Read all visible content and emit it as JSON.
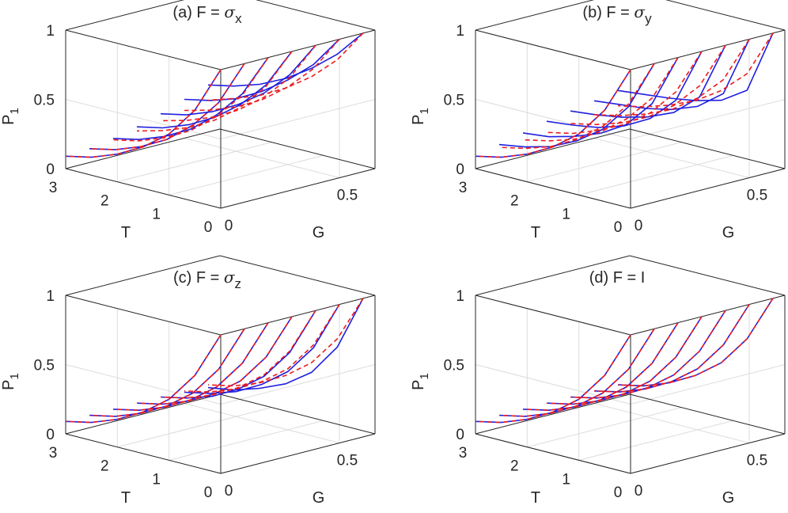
{
  "colors": {
    "simulation_line": "#1f1fe0",
    "theory_line": "#ee1c1c",
    "axes": "#262626",
    "grid": "#dcdcdc"
  },
  "chart_data": [
    {
      "type": "line3d",
      "title": {
        "prefix": "(a) F = ",
        "symbol": "σ",
        "subscript": "x"
      },
      "xlabel": "T",
      "ylabel": "G",
      "zlabel": {
        "base": "P",
        "subscript": "1"
      },
      "xlim": [
        0,
        3
      ],
      "ylim": [
        0,
        0.65
      ],
      "zlim": [
        0,
        1
      ],
      "xticks": [
        "0",
        "1",
        "2",
        "3"
      ],
      "yticks": [
        "0",
        "0.5"
      ],
      "zticks": [
        "0",
        "0.5",
        "1"
      ],
      "G_values": [
        0,
        0.1,
        0.2,
        0.3,
        0.4,
        0.5,
        0.6
      ],
      "series": [
        {
          "style": "solid",
          "color": "blue",
          "T": [
            0,
            0.5,
            1,
            1.5,
            2,
            2.5,
            3
          ],
          "P1": [
            [
              1,
              0.66,
              0.44,
              0.3,
              0.2,
              0.13,
              0.09
            ],
            [
              1,
              0.67,
              0.46,
              0.31,
              0.21,
              0.14,
              0.1
            ],
            [
              1,
              0.69,
              0.49,
              0.34,
              0.24,
              0.17,
              0.13
            ],
            [
              1,
              0.71,
              0.52,
              0.38,
              0.28,
              0.21,
              0.17
            ],
            [
              1,
              0.74,
              0.56,
              0.43,
              0.33,
              0.26,
              0.22
            ],
            [
              1,
              0.77,
              0.61,
              0.48,
              0.38,
              0.32,
              0.28
            ],
            [
              1,
              0.8,
              0.65,
              0.53,
              0.44,
              0.38,
              0.34
            ]
          ]
        },
        {
          "style": "dashed",
          "color": "red",
          "T": [
            0,
            0.5,
            1,
            1.5,
            2,
            2.5,
            3
          ],
          "P1": [
            [
              1,
              0.66,
              0.44,
              0.3,
              0.2,
              0.13,
              0.09
            ],
            [
              1,
              0.67,
              0.46,
              0.31,
              0.21,
              0.14,
              0.1
            ],
            [
              1,
              0.68,
              0.48,
              0.33,
              0.23,
              0.16,
              0.12
            ],
            [
              1,
              0.7,
              0.5,
              0.36,
              0.26,
              0.19,
              0.14
            ],
            [
              1,
              0.72,
              0.53,
              0.39,
              0.29,
              0.22,
              0.17
            ],
            [
              1,
              0.74,
              0.56,
              0.42,
              0.32,
              0.25,
              0.2
            ],
            [
              1,
              0.76,
              0.59,
              0.46,
              0.36,
              0.29,
              0.23
            ]
          ]
        }
      ]
    },
    {
      "type": "line3d",
      "title": {
        "prefix": "(b) F = ",
        "symbol": "σ",
        "subscript": "y"
      },
      "xlabel": "T",
      "ylabel": "G",
      "zlabel": {
        "base": "P",
        "subscript": "1"
      },
      "xlim": [
        0,
        3
      ],
      "ylim": [
        0,
        0.65
      ],
      "zlim": [
        0,
        1
      ],
      "xticks": [
        "0",
        "1",
        "2",
        "3"
      ],
      "yticks": [
        "0",
        "0.5"
      ],
      "zticks": [
        "0",
        "0.5",
        "1"
      ],
      "G_values": [
        0,
        0.1,
        0.2,
        0.3,
        0.4,
        0.5,
        0.6
      ],
      "series": [
        {
          "style": "solid",
          "color": "blue",
          "T": [
            0,
            0.5,
            1,
            1.5,
            2,
            2.5,
            3
          ],
          "P1": [
            [
              1,
              0.66,
              0.44,
              0.3,
              0.2,
              0.13,
              0.09
            ],
            [
              1,
              0.64,
              0.43,
              0.3,
              0.21,
              0.16,
              0.13
            ],
            [
              1,
              0.62,
              0.42,
              0.31,
              0.24,
              0.19,
              0.17
            ],
            [
              1,
              0.6,
              0.42,
              0.32,
              0.26,
              0.23,
              0.21
            ],
            [
              1,
              0.58,
              0.42,
              0.34,
              0.29,
              0.26,
              0.24
            ],
            [
              1,
              0.56,
              0.42,
              0.35,
              0.31,
              0.29,
              0.27
            ],
            [
              1,
              0.54,
              0.42,
              0.37,
              0.34,
              0.32,
              0.3
            ]
          ]
        },
        {
          "style": "dashed",
          "color": "red",
          "T": [
            0,
            0.5,
            1,
            1.5,
            2,
            2.5,
            3
          ],
          "P1": [
            [
              1,
              0.66,
              0.44,
              0.3,
              0.2,
              0.13,
              0.09
            ],
            [
              1,
              0.66,
              0.45,
              0.31,
              0.21,
              0.15,
              0.11
            ],
            [
              1,
              0.66,
              0.46,
              0.32,
              0.22,
              0.16,
              0.12
            ],
            [
              1,
              0.66,
              0.46,
              0.33,
              0.24,
              0.17,
              0.13
            ],
            [
              1,
              0.66,
              0.47,
              0.34,
              0.25,
              0.19,
              0.15
            ],
            [
              1,
              0.66,
              0.48,
              0.35,
              0.27,
              0.21,
              0.17
            ],
            [
              1,
              0.66,
              0.49,
              0.37,
              0.29,
              0.23,
              0.19
            ]
          ]
        }
      ]
    },
    {
      "type": "line3d",
      "title": {
        "prefix": "(c) F = ",
        "symbol": "σ",
        "subscript": "z"
      },
      "xlabel": "T",
      "ylabel": "G",
      "zlabel": {
        "base": "P",
        "subscript": "1"
      },
      "xlim": [
        0,
        3
      ],
      "ylim": [
        0,
        0.65
      ],
      "zlim": [
        0,
        1
      ],
      "xticks": [
        "0",
        "1",
        "2",
        "3"
      ],
      "yticks": [
        "0",
        "0.5"
      ],
      "zticks": [
        "0",
        "0.5",
        "1"
      ],
      "G_values": [
        0,
        0.1,
        0.2,
        0.3,
        0.4,
        0.5,
        0.6
      ],
      "series": [
        {
          "style": "solid",
          "color": "blue",
          "T": [
            0,
            0.5,
            1,
            1.5,
            2,
            2.5,
            3
          ],
          "P1": [
            [
              1,
              0.66,
              0.44,
              0.3,
              0.2,
              0.13,
              0.09
            ],
            [
              1,
              0.66,
              0.44,
              0.3,
              0.2,
              0.13,
              0.09
            ],
            [
              1,
              0.66,
              0.44,
              0.3,
              0.2,
              0.13,
              0.09
            ],
            [
              1,
              0.66,
              0.44,
              0.3,
              0.2,
              0.13,
              0.09
            ],
            [
              1,
              0.65,
              0.43,
              0.29,
              0.19,
              0.13,
              0.09
            ],
            [
              1,
              0.64,
              0.42,
              0.28,
              0.18,
              0.12,
              0.08
            ],
            [
              1,
              0.6,
              0.37,
              0.24,
              0.16,
              0.1,
              0.07
            ]
          ]
        },
        {
          "style": "dashed",
          "color": "red",
          "T": [
            0,
            0.5,
            1,
            1.5,
            2,
            2.5,
            3
          ],
          "P1": [
            [
              1,
              0.66,
              0.44,
              0.3,
              0.2,
              0.13,
              0.09
            ],
            [
              1,
              0.66,
              0.44,
              0.3,
              0.2,
              0.13,
              0.09
            ],
            [
              1,
              0.66,
              0.44,
              0.3,
              0.2,
              0.13,
              0.09
            ],
            [
              1,
              0.66,
              0.44,
              0.3,
              0.2,
              0.13,
              0.09
            ],
            [
              1,
              0.66,
              0.44,
              0.3,
              0.2,
              0.13,
              0.09
            ],
            [
              1,
              0.66,
              0.44,
              0.3,
              0.2,
              0.13,
              0.09
            ],
            [
              1,
              0.66,
              0.44,
              0.3,
              0.2,
              0.13,
              0.09
            ]
          ]
        }
      ]
    },
    {
      "type": "line3d",
      "title": {
        "prefix": "(d) F = I",
        "symbol": "",
        "subscript": ""
      },
      "xlabel": "T",
      "ylabel": "G",
      "zlabel": {
        "base": "P",
        "subscript": "1"
      },
      "xlim": [
        0,
        3
      ],
      "ylim": [
        0,
        0.65
      ],
      "zlim": [
        0,
        1
      ],
      "xticks": [
        "0",
        "1",
        "2",
        "3"
      ],
      "yticks": [
        "0",
        "0.5"
      ],
      "zticks": [
        "0",
        "0.5",
        "1"
      ],
      "G_values": [
        0,
        0.1,
        0.2,
        0.3,
        0.4,
        0.5,
        0.6
      ],
      "series": [
        {
          "style": "solid",
          "color": "blue",
          "T": [
            0,
            0.5,
            1,
            1.5,
            2,
            2.5,
            3
          ],
          "P1": [
            [
              1,
              0.66,
              0.44,
              0.3,
              0.2,
              0.13,
              0.09
            ],
            [
              1,
              0.66,
              0.44,
              0.3,
              0.2,
              0.13,
              0.09
            ],
            [
              1,
              0.66,
              0.44,
              0.3,
              0.2,
              0.13,
              0.09
            ],
            [
              1,
              0.66,
              0.44,
              0.3,
              0.2,
              0.13,
              0.09
            ],
            [
              1,
              0.66,
              0.44,
              0.3,
              0.2,
              0.13,
              0.09
            ],
            [
              1,
              0.66,
              0.44,
              0.3,
              0.2,
              0.13,
              0.09
            ],
            [
              1,
              0.66,
              0.44,
              0.3,
              0.2,
              0.13,
              0.09
            ]
          ]
        },
        {
          "style": "dashed",
          "color": "red",
          "T": [
            0,
            0.5,
            1,
            1.5,
            2,
            2.5,
            3
          ],
          "P1": [
            [
              1,
              0.66,
              0.44,
              0.3,
              0.2,
              0.13,
              0.09
            ],
            [
              1,
              0.66,
              0.44,
              0.3,
              0.2,
              0.13,
              0.09
            ],
            [
              1,
              0.66,
              0.44,
              0.3,
              0.2,
              0.13,
              0.09
            ],
            [
              1,
              0.66,
              0.44,
              0.3,
              0.2,
              0.13,
              0.09
            ],
            [
              1,
              0.66,
              0.44,
              0.3,
              0.2,
              0.13,
              0.09
            ],
            [
              1,
              0.66,
              0.44,
              0.3,
              0.2,
              0.13,
              0.09
            ],
            [
              1,
              0.66,
              0.44,
              0.3,
              0.2,
              0.13,
              0.09
            ]
          ]
        }
      ]
    }
  ]
}
